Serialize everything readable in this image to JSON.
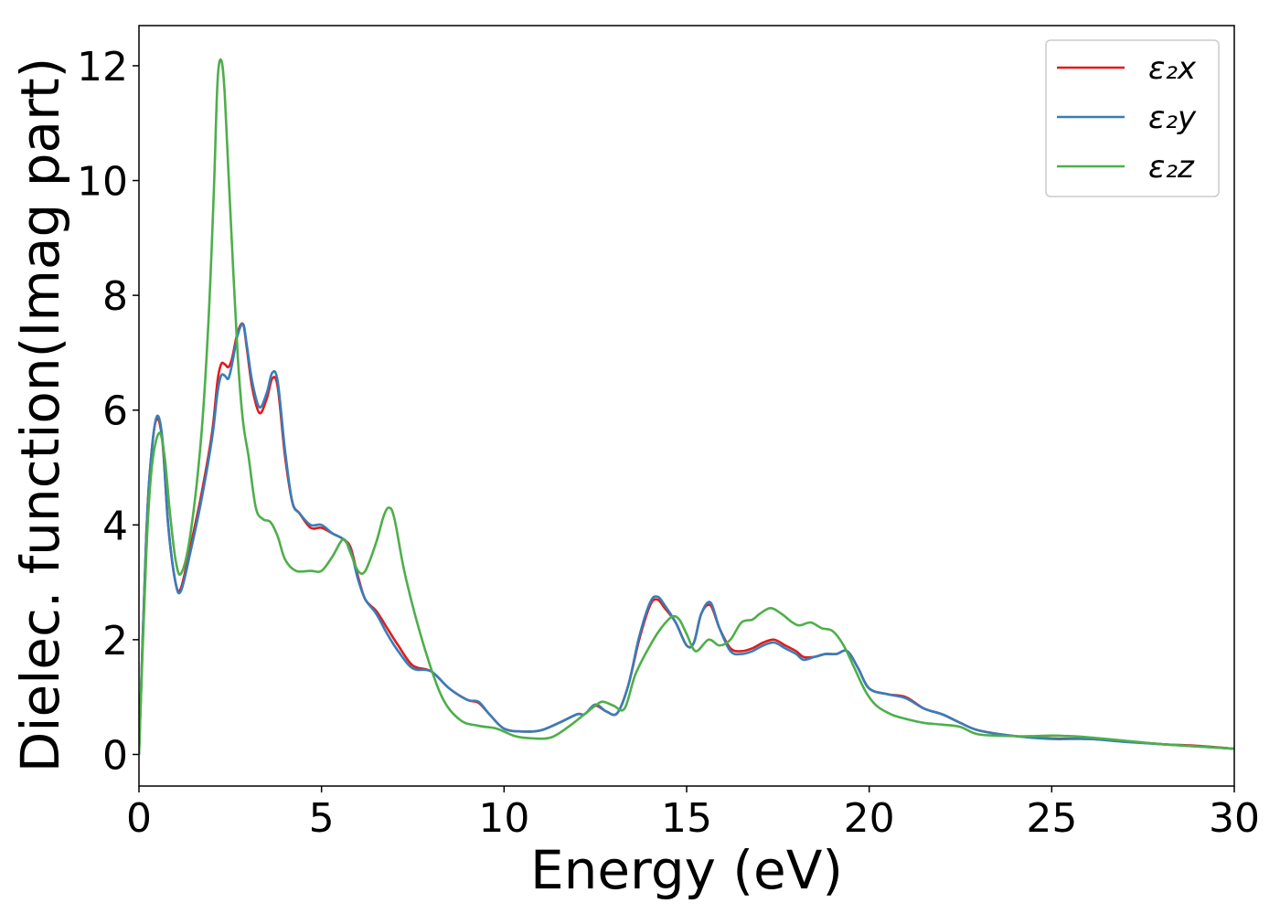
{
  "chart_data": {
    "type": "line",
    "title": "",
    "xlabel": "Energy (eV)",
    "ylabel": "Dielec. function(Imag part)",
    "xlim": [
      0,
      30
    ],
    "ylim": [
      -0.55,
      12.7
    ],
    "xticks": [
      0,
      5,
      10,
      15,
      20,
      25,
      30
    ],
    "yticks": [
      0,
      2,
      4,
      6,
      8,
      10,
      12
    ],
    "grid": false,
    "legend_position": "top-right",
    "series": [
      {
        "name": "ε₂x",
        "color": "#e41a1c",
        "x": [
          0,
          0.2,
          0.35,
          0.5,
          0.65,
          0.8,
          1.0,
          1.15,
          1.4,
          1.7,
          2.0,
          2.15,
          2.25,
          2.35,
          2.45,
          2.55,
          2.7,
          2.85,
          2.95,
          3.1,
          3.3,
          3.5,
          3.65,
          3.8,
          4.0,
          4.2,
          4.4,
          4.7,
          5.0,
          5.3,
          5.6,
          5.8,
          6.0,
          6.2,
          6.5,
          6.8,
          7.1,
          7.5,
          8.0,
          8.5,
          9.0,
          9.3,
          9.6,
          10.0,
          10.5,
          11.0,
          11.5,
          12.0,
          12.2,
          12.5,
          12.8,
          13.1,
          13.4,
          13.7,
          14.0,
          14.2,
          14.4,
          14.7,
          15.0,
          15.2,
          15.4,
          15.65,
          15.9,
          16.2,
          16.5,
          16.8,
          17.1,
          17.4,
          17.7,
          18.0,
          18.2,
          18.5,
          18.8,
          19.1,
          19.4,
          19.7,
          20.0,
          20.5,
          21.0,
          21.5,
          22.0,
          22.5,
          23.0,
          24.0,
          25.0,
          26.0,
          27.0,
          28.0,
          29.0,
          30.0
        ],
        "values": [
          0,
          3.8,
          5.3,
          5.85,
          5.4,
          4.0,
          3.0,
          2.9,
          3.6,
          4.5,
          5.6,
          6.5,
          6.8,
          6.8,
          6.75,
          6.9,
          7.35,
          7.5,
          7.1,
          6.4,
          5.95,
          6.2,
          6.55,
          6.4,
          5.2,
          4.4,
          4.2,
          3.95,
          3.95,
          3.85,
          3.75,
          3.6,
          3.1,
          2.7,
          2.5,
          2.2,
          1.9,
          1.55,
          1.45,
          1.15,
          0.95,
          0.9,
          0.7,
          0.45,
          0.4,
          0.42,
          0.55,
          0.7,
          0.7,
          0.85,
          0.75,
          0.72,
          1.2,
          2.0,
          2.6,
          2.7,
          2.55,
          2.3,
          1.9,
          1.95,
          2.45,
          2.6,
          2.2,
          1.85,
          1.8,
          1.85,
          1.95,
          2.0,
          1.9,
          1.8,
          1.7,
          1.7,
          1.75,
          1.75,
          1.8,
          1.5,
          1.15,
          1.05,
          1.0,
          0.8,
          0.7,
          0.55,
          0.42,
          0.32,
          0.28,
          0.27,
          0.23,
          0.18,
          0.15,
          0.1
        ]
      },
      {
        "name": "ε₂y",
        "color": "#377eb8",
        "x": [
          0,
          0.2,
          0.35,
          0.5,
          0.65,
          0.8,
          1.0,
          1.15,
          1.4,
          1.7,
          2.0,
          2.15,
          2.25,
          2.35,
          2.45,
          2.55,
          2.7,
          2.85,
          2.95,
          3.1,
          3.3,
          3.5,
          3.65,
          3.8,
          4.0,
          4.2,
          4.4,
          4.7,
          5.0,
          5.3,
          5.6,
          5.8,
          6.0,
          6.2,
          6.5,
          6.8,
          7.1,
          7.5,
          8.0,
          8.5,
          9.0,
          9.3,
          9.6,
          10.0,
          10.5,
          11.0,
          11.5,
          12.0,
          12.2,
          12.5,
          12.8,
          13.1,
          13.4,
          13.7,
          14.0,
          14.2,
          14.4,
          14.7,
          15.0,
          15.2,
          15.4,
          15.65,
          15.9,
          16.2,
          16.5,
          16.8,
          17.1,
          17.4,
          17.7,
          18.0,
          18.2,
          18.5,
          18.8,
          19.1,
          19.4,
          19.7,
          20.0,
          20.5,
          21.0,
          21.5,
          22.0,
          22.5,
          23.0,
          24.0,
          25.0,
          26.0,
          27.0,
          28.0,
          29.0,
          30.0
        ],
        "values": [
          0,
          3.8,
          5.3,
          5.9,
          5.45,
          4.0,
          3.0,
          2.85,
          3.5,
          4.4,
          5.5,
          6.3,
          6.6,
          6.6,
          6.55,
          6.8,
          7.3,
          7.5,
          7.15,
          6.5,
          6.05,
          6.3,
          6.65,
          6.5,
          5.3,
          4.4,
          4.2,
          4.0,
          4.0,
          3.85,
          3.75,
          3.55,
          3.05,
          2.7,
          2.45,
          2.1,
          1.8,
          1.5,
          1.45,
          1.15,
          0.95,
          0.92,
          0.7,
          0.45,
          0.4,
          0.42,
          0.55,
          0.7,
          0.7,
          0.87,
          0.75,
          0.72,
          1.2,
          2.05,
          2.65,
          2.75,
          2.6,
          2.3,
          1.9,
          1.95,
          2.45,
          2.65,
          2.2,
          1.8,
          1.75,
          1.8,
          1.9,
          1.95,
          1.85,
          1.75,
          1.65,
          1.7,
          1.75,
          1.75,
          1.8,
          1.5,
          1.15,
          1.05,
          0.98,
          0.8,
          0.7,
          0.55,
          0.42,
          0.32,
          0.27,
          0.27,
          0.22,
          0.18,
          0.14,
          0.1
        ]
      },
      {
        "name": "ε₂z",
        "color": "#4daf4a",
        "x": [
          0,
          0.2,
          0.35,
          0.55,
          0.7,
          0.85,
          1.0,
          1.15,
          1.4,
          1.7,
          1.9,
          2.05,
          2.15,
          2.25,
          2.35,
          2.5,
          2.7,
          2.85,
          3.0,
          3.2,
          3.4,
          3.6,
          3.8,
          4.0,
          4.3,
          4.7,
          5.0,
          5.3,
          5.6,
          5.8,
          6.0,
          6.2,
          6.5,
          6.7,
          6.85,
          7.0,
          7.3,
          7.8,
          8.3,
          8.8,
          9.3,
          9.8,
          10.3,
          10.8,
          11.3,
          11.8,
          12.2,
          12.5,
          12.7,
          13.0,
          13.3,
          13.6,
          14.0,
          14.3,
          14.6,
          14.8,
          15.0,
          15.25,
          15.6,
          15.9,
          16.2,
          16.5,
          16.8,
          17.0,
          17.3,
          17.6,
          17.9,
          18.1,
          18.4,
          18.7,
          19.0,
          19.3,
          19.6,
          19.9,
          20.2,
          20.6,
          21.0,
          21.5,
          22.0,
          22.5,
          23.0,
          24.0,
          24.5,
          25.0,
          25.5,
          26.0,
          27.0,
          28.0,
          29.0,
          30.0
        ],
        "values": [
          0,
          3.5,
          5.0,
          5.6,
          5.2,
          4.2,
          3.4,
          3.15,
          3.8,
          5.5,
          7.5,
          9.8,
          11.7,
          12.1,
          11.5,
          9.5,
          7.0,
          5.8,
          5.2,
          4.3,
          4.1,
          4.05,
          3.8,
          3.4,
          3.2,
          3.2,
          3.2,
          3.45,
          3.75,
          3.5,
          3.2,
          3.2,
          3.7,
          4.15,
          4.3,
          4.1,
          3.1,
          1.9,
          1.0,
          0.6,
          0.5,
          0.45,
          0.32,
          0.28,
          0.3,
          0.5,
          0.7,
          0.85,
          0.92,
          0.85,
          0.8,
          1.4,
          1.9,
          2.2,
          2.4,
          2.35,
          2.1,
          1.8,
          2.0,
          1.9,
          2.0,
          2.3,
          2.35,
          2.45,
          2.55,
          2.45,
          2.3,
          2.25,
          2.3,
          2.2,
          2.15,
          1.9,
          1.5,
          1.1,
          0.85,
          0.7,
          0.62,
          0.55,
          0.52,
          0.48,
          0.35,
          0.32,
          0.32,
          0.33,
          0.32,
          0.3,
          0.24,
          0.18,
          0.14,
          0.1
        ]
      }
    ]
  }
}
